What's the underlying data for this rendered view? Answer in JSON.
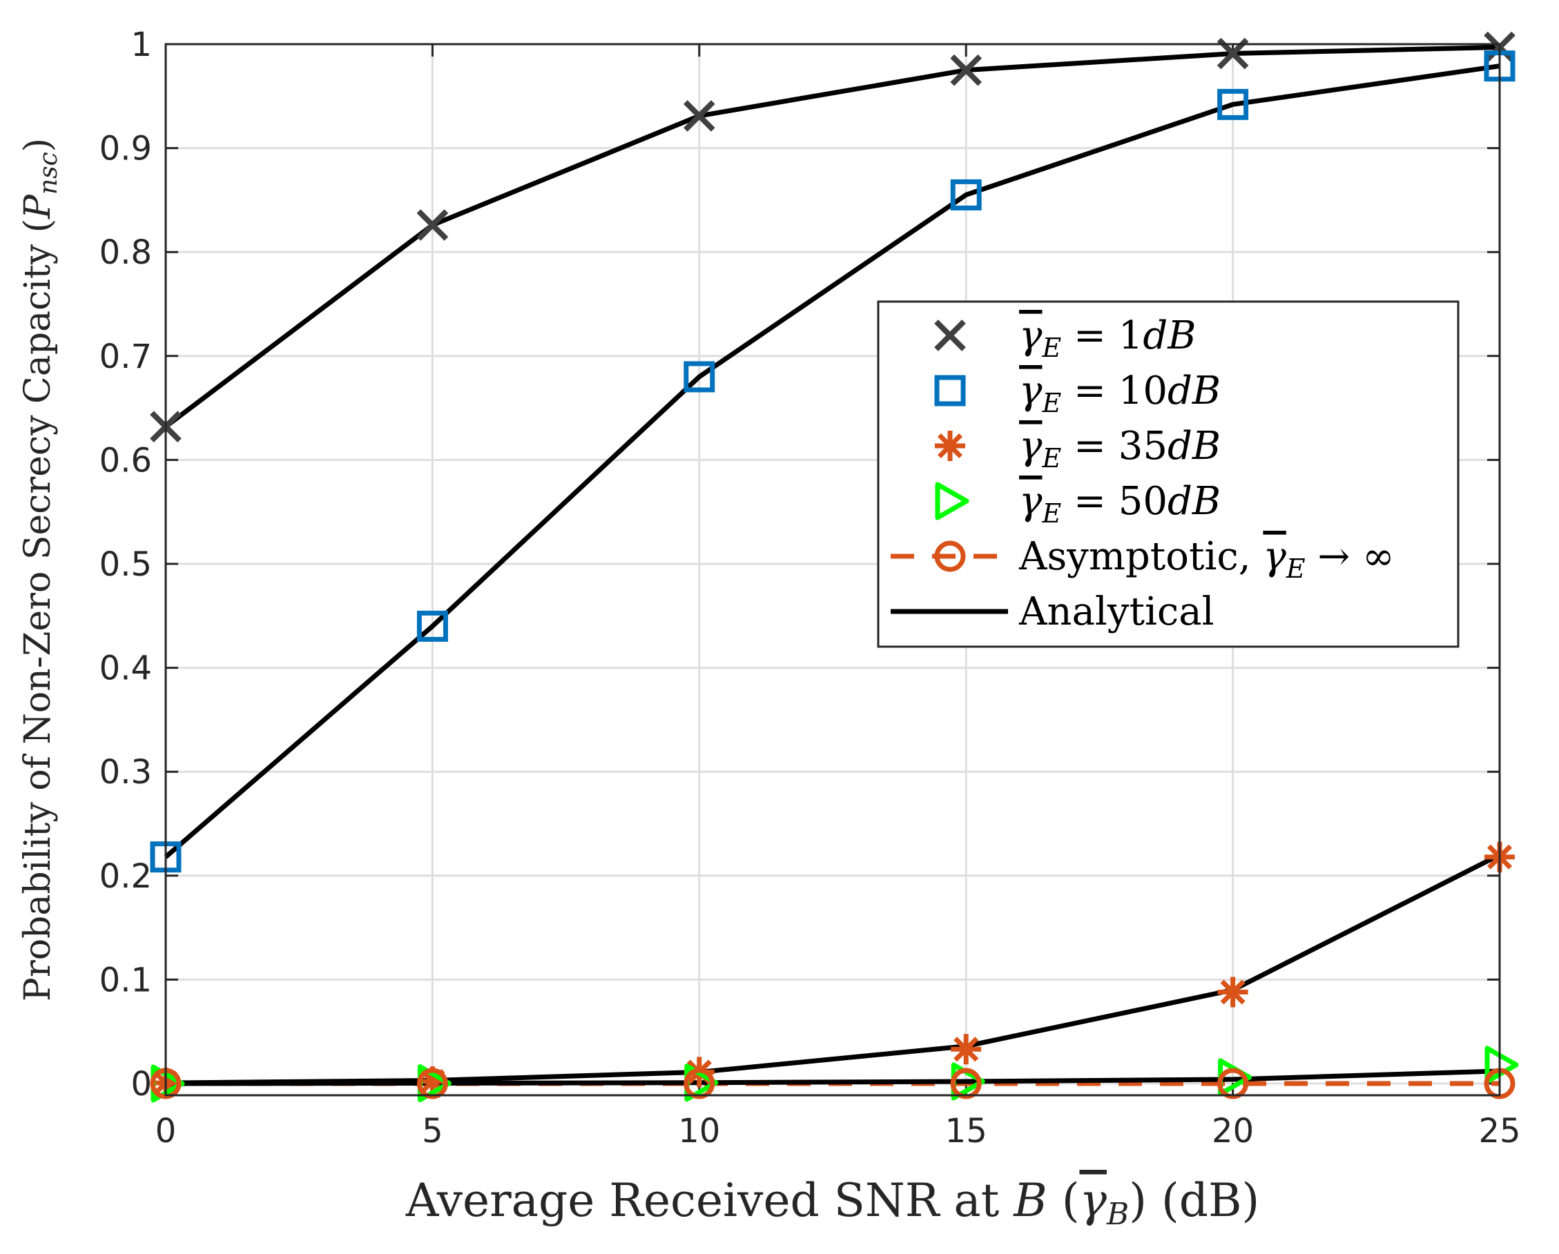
{
  "chart_data": {
    "type": "line",
    "x": [
      0,
      5,
      10,
      15,
      20,
      25
    ],
    "xlim": [
      0,
      25
    ],
    "ylim": [
      0,
      1
    ],
    "xticks": [
      "0",
      "5",
      "10",
      "15",
      "20",
      "25"
    ],
    "yticks": [
      "0",
      "0.1",
      "0.2",
      "0.3",
      "0.4",
      "0.5",
      "0.6",
      "0.7",
      "0.8",
      "0.9",
      "1"
    ],
    "grid": true,
    "xlabel": {
      "prefix": "Average Received SNR at ",
      "var": "B",
      "paren_open": " (",
      "gamma": "γ",
      "sub": "B",
      "paren_close": ")",
      "suffix": " (dB)"
    },
    "ylabel": {
      "prefix": "Probability of Non-Zero Secrecy Capacity (",
      "var": "P",
      "sub": "nsc",
      "suffix": ")"
    },
    "legend_position": "center-right",
    "series": [
      {
        "name": "1dB",
        "legend": {
          "gamma": "γ",
          "sub": "E",
          "rel": " = ",
          "value": "1",
          "unit": "dB"
        },
        "marker": "x",
        "color": "#404040",
        "values": [
          0.632,
          0.826,
          0.931,
          0.975,
          0.991,
          0.997
        ]
      },
      {
        "name": "10dB",
        "legend": {
          "gamma": "γ",
          "sub": "E",
          "rel": " = ",
          "value": "10",
          "unit": "dB"
        },
        "marker": "square",
        "color": "#0072BD",
        "values": [
          0.218,
          0.44,
          0.68,
          0.855,
          0.942,
          0.979
        ]
      },
      {
        "name": "35dB",
        "legend": {
          "gamma": "γ",
          "sub": "E",
          "rel": " = ",
          "value": "35",
          "unit": "dB"
        },
        "marker": "asterisk",
        "color": "#D95319",
        "values": [
          0.0006,
          0.002,
          0.011,
          0.033,
          0.088,
          0.218
        ]
      },
      {
        "name": "50dB",
        "legend": {
          "gamma": "γ",
          "sub": "E",
          "rel": " = ",
          "value": "50",
          "unit": "dB"
        },
        "marker": "triangle-right",
        "color": "#00FF00",
        "values": [
          0.0,
          0.0003,
          0.0008,
          0.002,
          0.006,
          0.018
        ]
      },
      {
        "name": "Asymptotic",
        "legend": {
          "text": "Asymptotic, ",
          "gamma": "γ",
          "sub": "E",
          "rel": " → ",
          "value": "∞"
        },
        "marker": "circle-dash",
        "color": "#D95319",
        "values": [
          0.0,
          0.0,
          0.0,
          0.0,
          0.0,
          0.0
        ]
      },
      {
        "name": "Analytical",
        "legend": {
          "text": "Analytical"
        },
        "marker": "line",
        "color": "#000000"
      }
    ],
    "analytical_curves": [
      [
        0.632,
        0.826,
        0.931,
        0.975,
        0.991,
        0.997
      ],
      [
        0.218,
        0.44,
        0.68,
        0.855,
        0.942,
        0.979
      ],
      [
        0.0006,
        0.003,
        0.011,
        0.036,
        0.09,
        0.22
      ],
      [
        0.0,
        0.0003,
        0.0008,
        0.002,
        0.004,
        0.012
      ]
    ]
  }
}
